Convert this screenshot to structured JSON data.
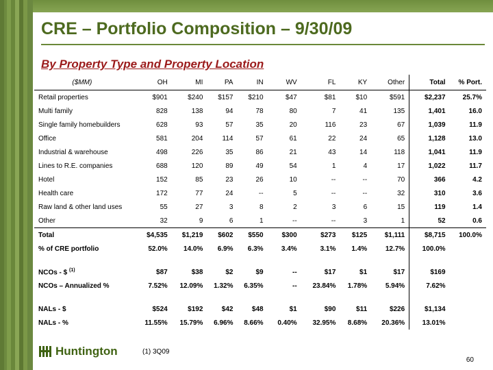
{
  "slide": {
    "title": "CRE – Portfolio Composition – 9/30/09",
    "subtitle": "By Property Type and Property Location",
    "footnote": "(1)  3Q09",
    "page_number": "60",
    "logo_text": "Huntington",
    "colors": {
      "title": "#4d6a1f",
      "subtitle": "#9b1b1b",
      "brand_green": "#5f7a35"
    }
  },
  "table": {
    "headers": [
      "($MM)",
      "OH",
      "MI",
      "PA",
      "IN",
      "WV",
      "FL",
      "KY",
      "Other",
      "Total",
      "% Port."
    ],
    "rows": [
      [
        "Retail properties",
        "$901",
        "$240",
        "$157",
        "$210",
        "$47",
        "$81",
        "$10",
        "$591",
        "$2,237",
        "25.7%"
      ],
      [
        "Multi family",
        "828",
        "138",
        "94",
        "78",
        "80",
        "7",
        "41",
        "135",
        "1,401",
        "16.0"
      ],
      [
        "Single family homebuilders",
        "628",
        "93",
        "57",
        "35",
        "20",
        "116",
        "23",
        "67",
        "1,039",
        "11.9"
      ],
      [
        "Office",
        "581",
        "204",
        "114",
        "57",
        "61",
        "22",
        "24",
        "65",
        "1,128",
        "13.0"
      ],
      [
        "Industrial & warehouse",
        "498",
        "226",
        "35",
        "86",
        "21",
        "43",
        "14",
        "118",
        "1,041",
        "11.9"
      ],
      [
        "Lines to R.E. companies",
        "688",
        "120",
        "89",
        "49",
        "54",
        "1",
        "4",
        "17",
        "1,022",
        "11.7"
      ],
      [
        "Hotel",
        "152",
        "85",
        "23",
        "26",
        "10",
        "--",
        "--",
        "70",
        "366",
        "4.2"
      ],
      [
        "Health care",
        "172",
        "77",
        "24",
        "--",
        "5",
        "--",
        "--",
        "32",
        "310",
        "3.6"
      ],
      [
        "Raw land & other land uses",
        "55",
        "27",
        "3",
        "8",
        "2",
        "3",
        "6",
        "15",
        "119",
        "1.4"
      ],
      [
        "Other",
        "32",
        "9",
        "6",
        "1",
        "--",
        "--",
        "3",
        "1",
        "52",
        "0.6"
      ]
    ],
    "total_row": [
      "Total",
      "$4,535",
      "$1,219",
      "$602",
      "$550",
      "$300",
      "$273",
      "$125",
      "$1,111",
      "$8,715",
      "100.0%"
    ],
    "pct_row": [
      "% of CRE portfolio",
      "52.0%",
      "14.0%",
      "6.9%",
      "6.3%",
      "3.4%",
      "3.1%",
      "1.4%",
      "12.7%",
      "100.0%",
      ""
    ],
    "nco_dollar_label": "NCOs - $ ",
    "nco_dollar_sup": "(1)",
    "nco_dollar": [
      "$87",
      "$38",
      "$2",
      "$9",
      "--",
      "$17",
      "$1",
      "$17",
      "$169",
      ""
    ],
    "nco_pct": [
      "NCOs – Annualized %",
      "7.52%",
      "12.09%",
      "1.32%",
      "6.35%",
      "--",
      "23.84%",
      "1.78%",
      "5.94%",
      "7.62%",
      ""
    ],
    "nal_dollar": [
      "NALs - $",
      "$524",
      "$192",
      "$42",
      "$48",
      "$1",
      "$90",
      "$11",
      "$226",
      "$1,134",
      ""
    ],
    "nal_pct": [
      "NALs - %",
      "11.55%",
      "15.79%",
      "6.96%",
      "8.66%",
      "0.40%",
      "32.95%",
      "8.68%",
      "20.36%",
      "13.01%",
      ""
    ]
  }
}
